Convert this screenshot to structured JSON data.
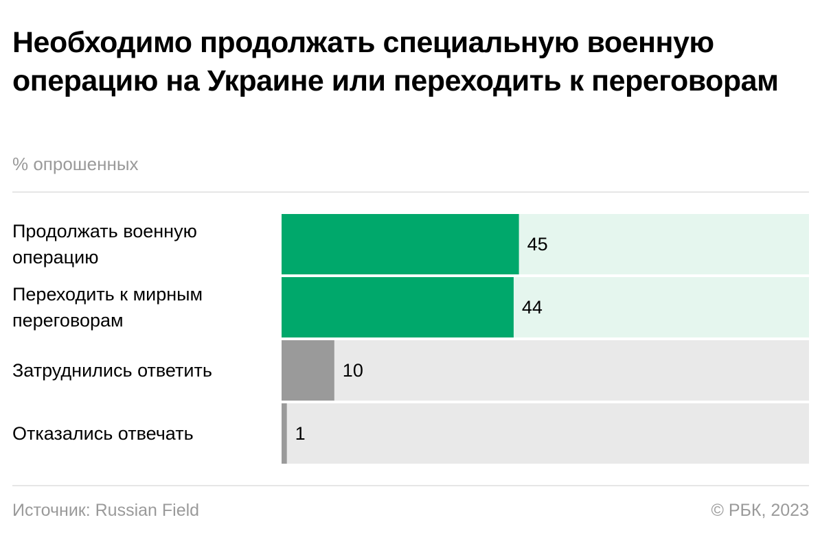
{
  "chart_data": {
    "type": "bar",
    "orientation": "horizontal",
    "title": "Необходимо продолжать специальную военную операцию на Украине или переходить к переговорам",
    "subtitle": "% опрошенных",
    "categories": [
      "Продолжать военную операцию",
      "Переходить к мирным переговорам",
      "Затруднились ответить",
      "Отказались отвечать"
    ],
    "values": [
      45,
      44,
      10,
      1
    ],
    "colors": [
      "#00a86b",
      "#00a86b",
      "#9a9a9a",
      "#9a9a9a"
    ],
    "track_colors": [
      "#e5f6ee",
      "#e5f6ee",
      "#e9e9e9",
      "#e9e9e9"
    ],
    "xlim": [
      0,
      100
    ],
    "source": "Источник: Russian Field",
    "copyright": "© РБК, 2023"
  }
}
